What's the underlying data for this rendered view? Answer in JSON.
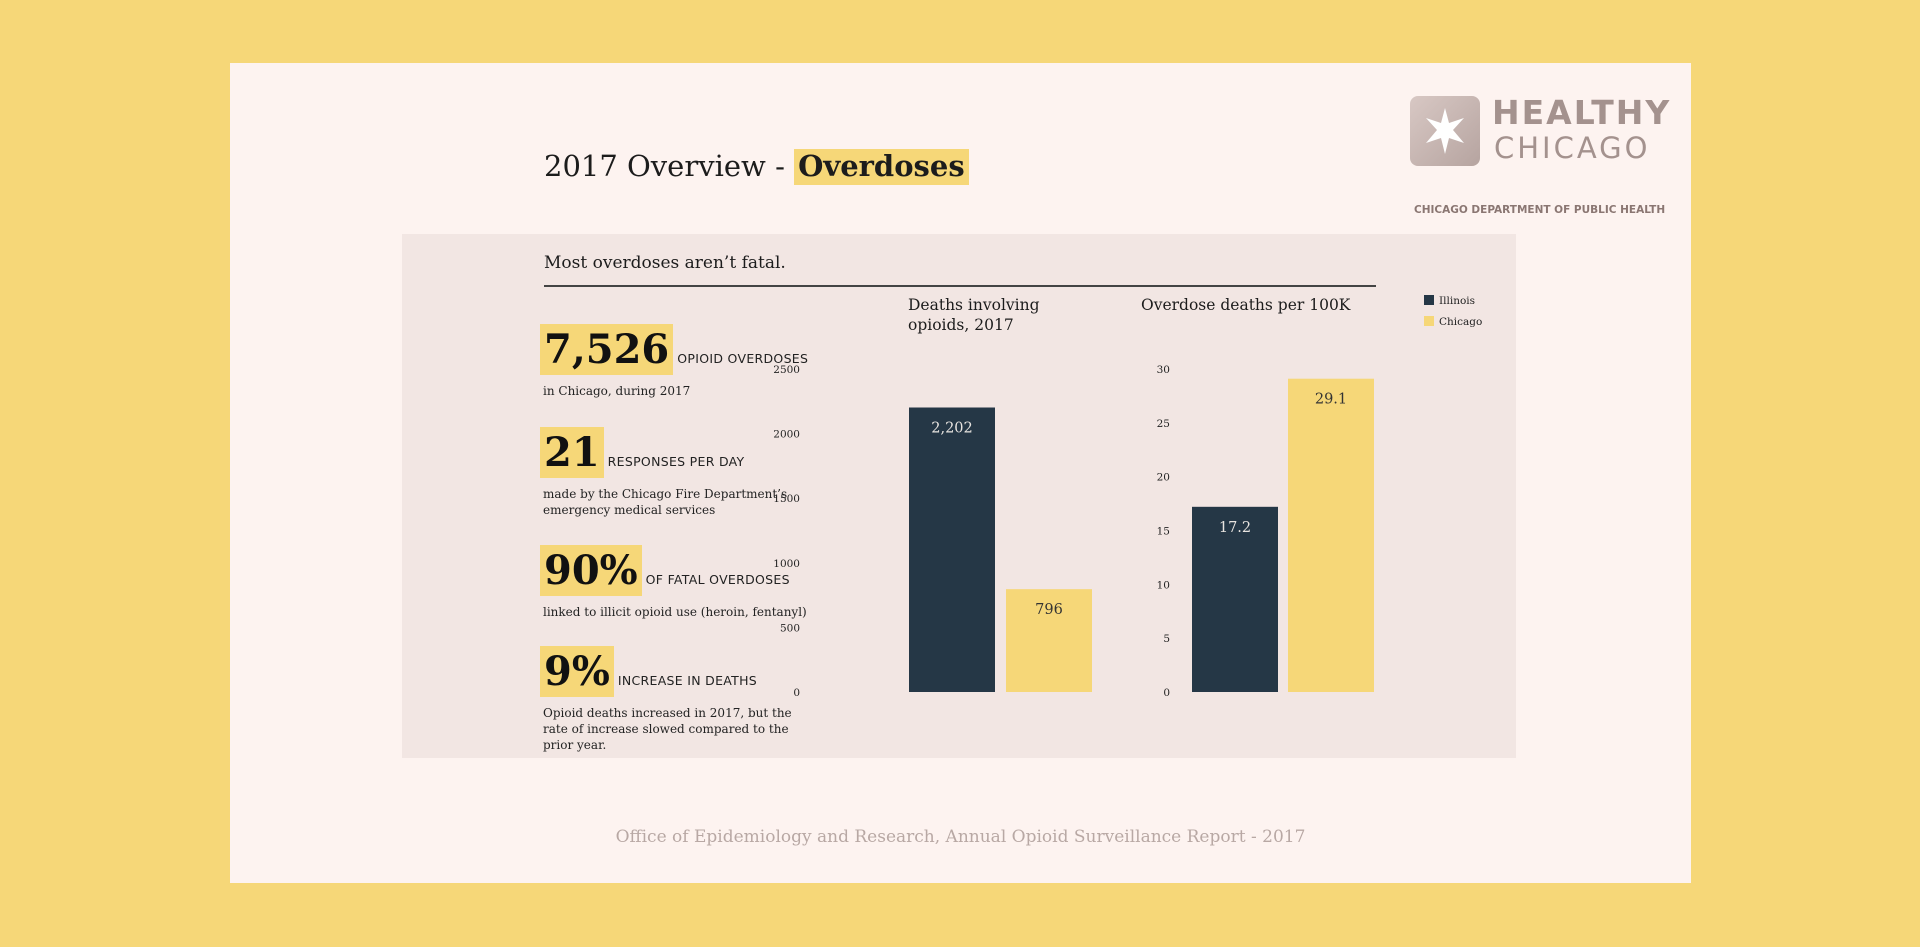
{
  "title": {
    "prefix": "2017 Overview - ",
    "highlight": "Overdoses"
  },
  "logo": {
    "line1": "HEALTHY",
    "line2": "CHICAGO",
    "line3": "CHICAGO DEPARTMENT OF PUBLIC HEALTH"
  },
  "panel": {
    "subtitle": "Most overdoses aren’t fatal."
  },
  "stats": [
    {
      "number": "7,526",
      "caption": "OPIOID OVERDOSES",
      "description": "in Chicago, during 2017"
    },
    {
      "number": "21",
      "caption": "RESPONSES PER DAY",
      "description": "made by the Chicago Fire Department’s emergency medical services"
    },
    {
      "number": "90%",
      "caption": "OF FATAL OVERDOSES",
      "description": "linked to illicit opioid use (heroin, fentanyl)"
    },
    {
      "number": "9%",
      "caption": "INCREASE IN DEATHS",
      "description": "Opioid deaths increased in 2017, but the rate of increase slowed compared to the prior year."
    }
  ],
  "colors": {
    "illinois": "#253746",
    "chicago": "#f6d778"
  },
  "chart_data": [
    {
      "type": "bar",
      "title": "Deaths involving opioids, 2017",
      "categories": [
        "Illinois",
        "Chicago"
      ],
      "values": [
        2202,
        796
      ],
      "data_labels": [
        "2,202",
        "796"
      ],
      "yticks": [
        "0",
        "500",
        "1000",
        "1500",
        "2000",
        "2500"
      ],
      "ylim": [
        0,
        2500
      ],
      "grid": false
    },
    {
      "type": "bar",
      "title": "Overdose deaths per 100K",
      "categories": [
        "Illinois",
        "Chicago"
      ],
      "values": [
        17.2,
        29.1
      ],
      "data_labels": [
        "17.2",
        "29.1"
      ],
      "yticks": [
        "0",
        "5",
        "10",
        "15",
        "20",
        "25",
        "30"
      ],
      "ylim": [
        0,
        30
      ],
      "grid": false
    }
  ],
  "legend": {
    "placement": "top-right",
    "entries": [
      "Illinois",
      "Chicago"
    ]
  },
  "footer": "Office of Epidemiology and Research, Annual Opioid Surveillance Report - 2017"
}
